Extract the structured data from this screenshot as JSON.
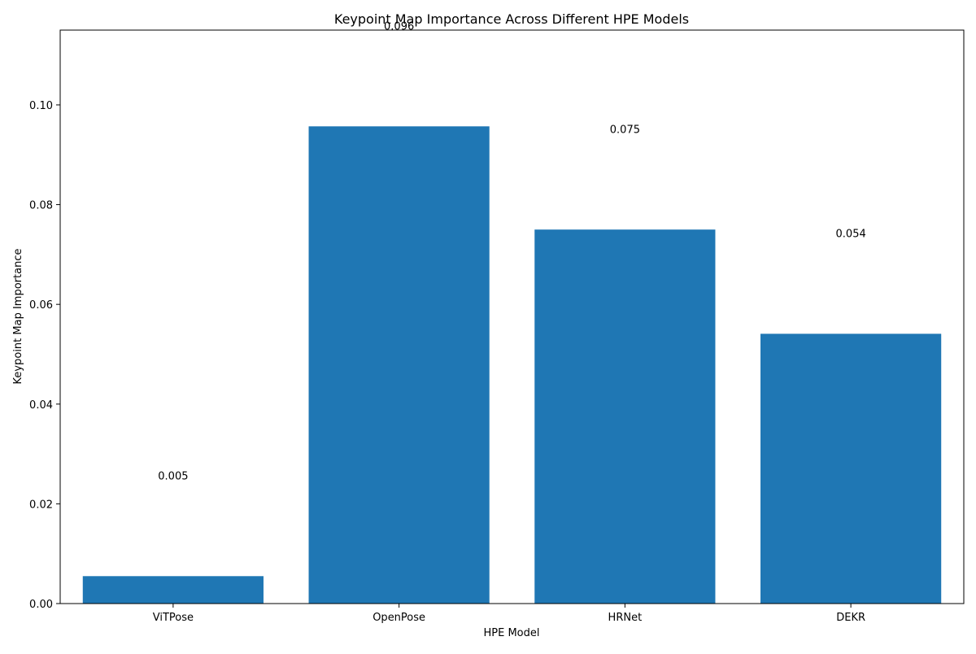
{
  "chart_data": {
    "type": "bar",
    "title": "Keypoint Map Importance Across Different HPE Models",
    "xlabel": "HPE Model",
    "ylabel": "Keypoint Map Importance",
    "categories": [
      "ViTPose",
      "OpenPose",
      "HRNet",
      "DEKR"
    ],
    "values": [
      0.0055,
      0.0957,
      0.075,
      0.0541
    ],
    "data_labels": [
      "0.005",
      "0.096",
      "0.075",
      "0.054"
    ],
    "ylim": [
      0,
      0.115
    ],
    "yticks": [
      0.0,
      0.02,
      0.04,
      0.06,
      0.08,
      0.1
    ],
    "ytick_labels": [
      "0.00",
      "0.02",
      "0.04",
      "0.06",
      "0.08",
      "0.10"
    ],
    "bar_color": "#1f77b4",
    "grid": false,
    "legend": "none"
  }
}
